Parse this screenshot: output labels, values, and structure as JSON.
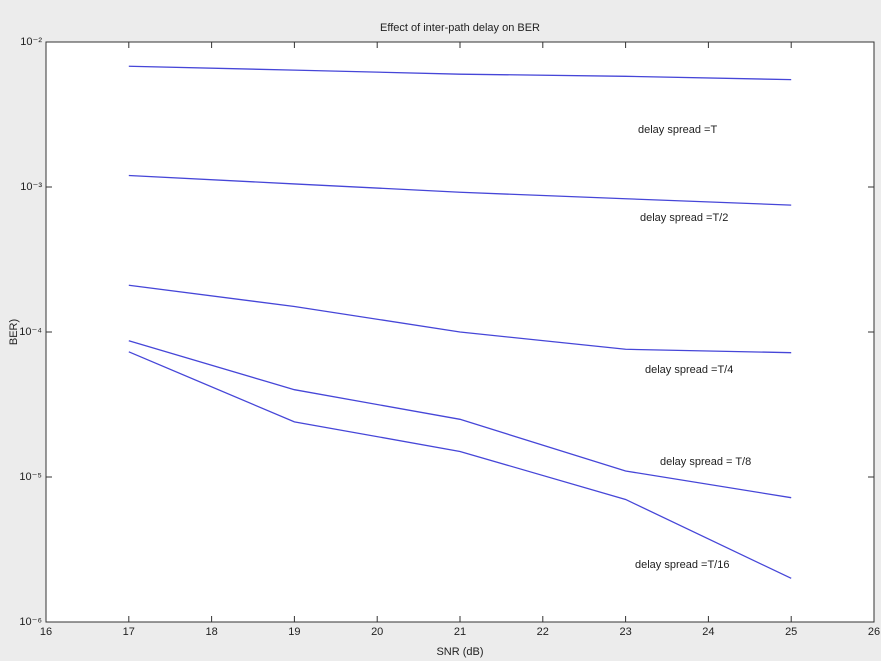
{
  "chart_data": {
    "type": "line",
    "title": "Effect of inter-path delay on BER",
    "xlabel": "SNR (dB)",
    "ylabel": "BER)",
    "x": [
      17,
      19,
      21,
      23,
      25
    ],
    "series": [
      {
        "name": "delay spread =T",
        "color": "#4646d8",
        "values": [
          0.0068,
          0.0064,
          0.006,
          0.0058,
          0.0055
        ]
      },
      {
        "name": "delay spread =T/2",
        "color": "#4646d8",
        "values": [
          0.0012,
          0.00105,
          0.00092,
          0.00083,
          0.00075
        ]
      },
      {
        "name": "delay spread =T/4",
        "color": "#4646d8",
        "values": [
          0.00021,
          0.00015,
          0.0001,
          7.6e-05,
          7.2e-05
        ]
      },
      {
        "name": "delay spread = T/8",
        "color": "#4646d8",
        "values": [
          8.7e-05,
          4e-05,
          2.5e-05,
          1.1e-05,
          7.2e-06
        ]
      },
      {
        "name": "delay spread =T/16",
        "color": "#4646d8",
        "values": [
          7.3e-05,
          2.4e-05,
          1.5e-05,
          7e-06,
          2e-06
        ]
      }
    ],
    "xlim": [
      16,
      26
    ],
    "xticks": [
      16,
      17,
      18,
      19,
      20,
      21,
      22,
      23,
      24,
      25,
      26
    ],
    "ylim": [
      1e-06,
      0.01
    ],
    "log_y": true,
    "yticks": [
      {
        "value": 1e-06,
        "label": "10⁻⁶"
      },
      {
        "value": 1e-05,
        "label": "10⁻⁵"
      },
      {
        "value": 0.0001,
        "label": "10⁻⁴"
      },
      {
        "value": 0.001,
        "label": "10⁻³"
      },
      {
        "value": 0.01,
        "label": "10⁻²"
      }
    ],
    "grid": false
  }
}
